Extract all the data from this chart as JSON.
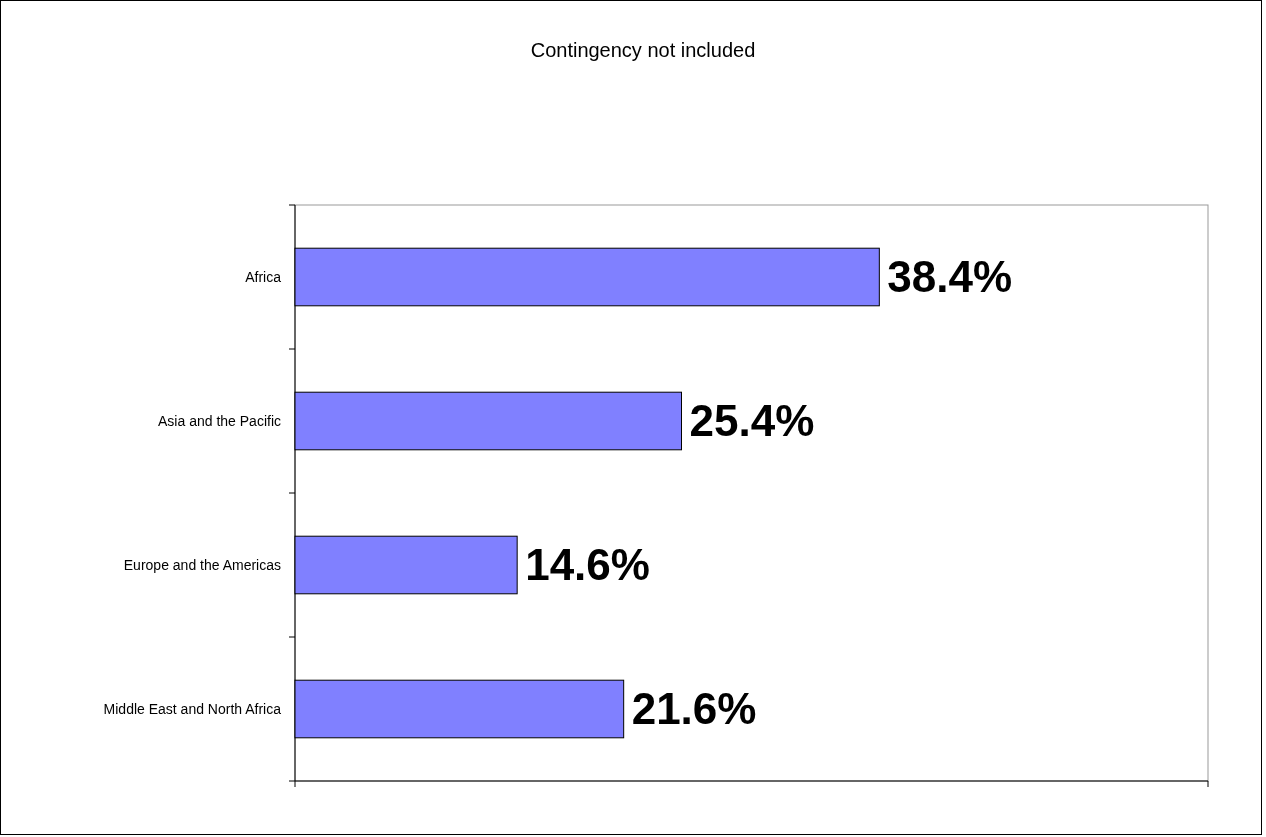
{
  "chart_data": {
    "type": "bar",
    "title": "Contingency not included",
    "orientation": "horizontal",
    "categories": [
      "Africa",
      "Asia and the Pacific",
      "Europe and the Americas",
      "Middle East and North Africa"
    ],
    "values": [
      38.4,
      25.4,
      14.6,
      21.6
    ],
    "color": "#8080ff",
    "value_labels": [
      "38.4%",
      "25.4%",
      "14.6%",
      "21.6%"
    ],
    "xlim": [
      0,
      60
    ],
    "xticks": [
      {
        "value": 0,
        "label": null
      },
      {
        "value": 60,
        "label": null
      }
    ],
    "tick_labels": "y"
  }
}
